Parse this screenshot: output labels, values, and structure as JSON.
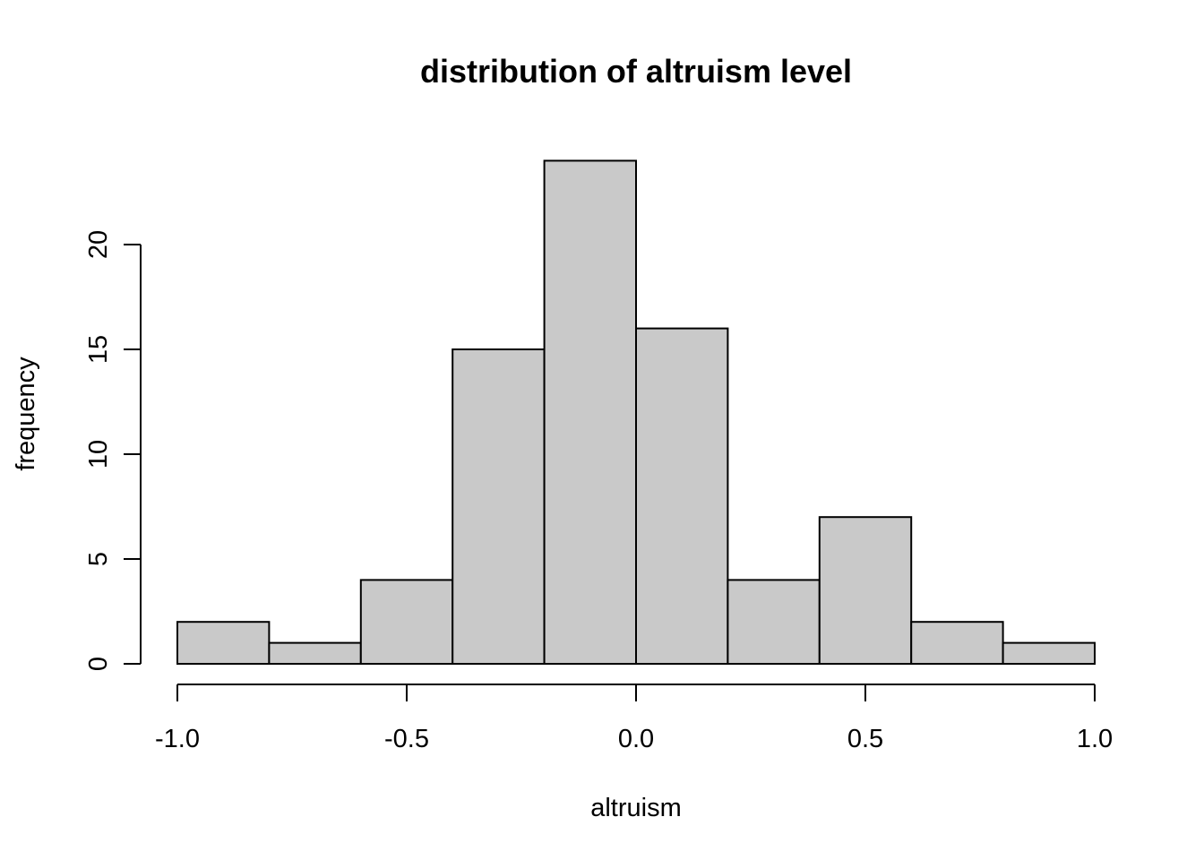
{
  "chart_data": {
    "type": "bar",
    "title": "distribution of altruism level",
    "xlabel": "altruism",
    "ylabel": "frequency",
    "bins": [
      {
        "x0": -1.0,
        "x1": -0.8,
        "count": 2
      },
      {
        "x0": -0.8,
        "x1": -0.6,
        "count": 1
      },
      {
        "x0": -0.6,
        "x1": -0.4,
        "count": 4
      },
      {
        "x0": -0.4,
        "x1": -0.2,
        "count": 15
      },
      {
        "x0": -0.2,
        "x1": 0.0,
        "count": 24
      },
      {
        "x0": 0.0,
        "x1": 0.2,
        "count": 16
      },
      {
        "x0": 0.2,
        "x1": 0.4,
        "count": 4
      },
      {
        "x0": 0.4,
        "x1": 0.6,
        "count": 7
      },
      {
        "x0": 0.6,
        "x1": 0.8,
        "count": 2
      },
      {
        "x0": 0.8,
        "x1": 1.0,
        "count": 1
      }
    ],
    "x_ticks": [
      -1.0,
      -0.5,
      0.0,
      0.5,
      1.0
    ],
    "x_tick_labels": [
      "-1.0",
      "-0.5",
      "0.0",
      "0.5",
      "1.0"
    ],
    "y_ticks": [
      0,
      5,
      10,
      15,
      20
    ],
    "y_tick_labels": [
      "0",
      "5",
      "10",
      "15",
      "20"
    ],
    "xlim": [
      -1.0,
      1.0
    ],
    "ylim": [
      0,
      24
    ],
    "grid": false,
    "legend": "none",
    "bar_fill": "#c9c9c9",
    "bar_stroke": "#000000"
  }
}
